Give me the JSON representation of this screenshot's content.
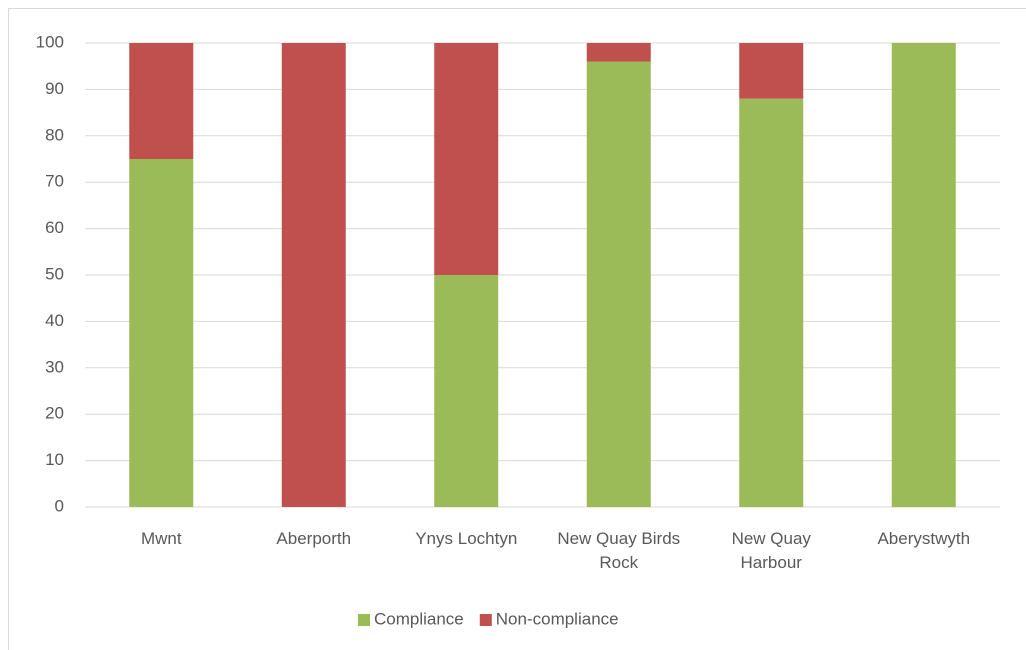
{
  "chart_data": {
    "type": "stacked_bar",
    "categories": [
      "Mwnt",
      "Aberporth",
      "Ynys Lochtyn",
      "New Quay Birds Rock",
      "New Quay Harbour",
      "Aberystwyth"
    ],
    "series": [
      {
        "name": "Compliance",
        "color": "#9bbb59",
        "values": [
          75,
          0,
          50,
          96,
          88,
          100
        ]
      },
      {
        "name": "Non-compliance",
        "color": "#c0504d",
        "values": [
          25,
          100,
          50,
          4,
          12,
          0
        ]
      }
    ],
    "ylim": [
      0,
      100
    ],
    "yticks": [
      0,
      10,
      20,
      30,
      40,
      50,
      60,
      70,
      80,
      90,
      100
    ],
    "grid": true,
    "legend": "bottom"
  }
}
